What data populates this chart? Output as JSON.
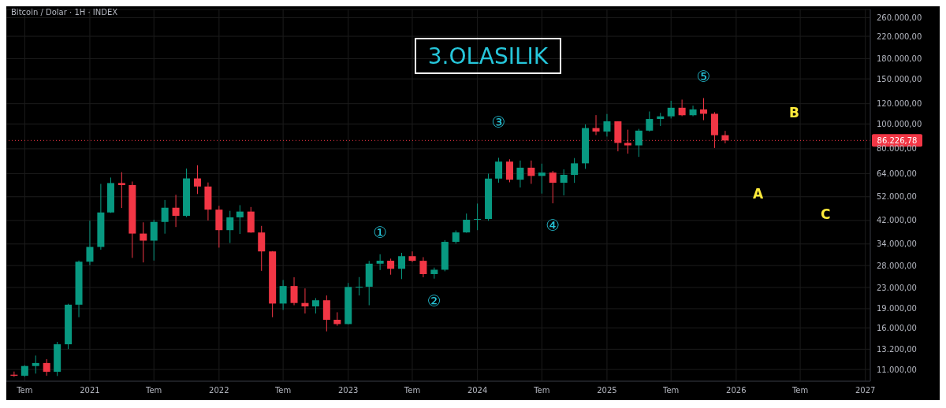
{
  "chart_data": {
    "type": "candlestick",
    "title": "3.OLASILIK",
    "subtitle": "Bitcoin / Dolar · 1H · INDEX",
    "x": [
      "2020-06",
      "2020-07",
      "2020-08",
      "2020-09",
      "2020-10",
      "2020-11",
      "2020-12",
      "2021-01",
      "2021-02",
      "2021-03",
      "2021-04",
      "2021-05",
      "2021-06",
      "2021-07",
      "2021-08",
      "2021-09",
      "2021-10",
      "2021-11",
      "2021-12",
      "2022-01",
      "2022-02",
      "2022-03",
      "2022-04",
      "2022-05",
      "2022-06",
      "2022-07",
      "2022-08",
      "2022-09",
      "2022-10",
      "2022-11",
      "2022-12",
      "2023-01",
      "2023-02",
      "2023-03",
      "2023-04",
      "2023-05",
      "2023-06",
      "2023-07",
      "2023-08",
      "2023-09",
      "2023-10",
      "2023-11",
      "2023-12",
      "2024-01",
      "2024-02",
      "2024-03",
      "2024-04",
      "2024-05",
      "2024-06",
      "2024-07",
      "2024-08",
      "2024-09",
      "2024-10",
      "2024-11",
      "2024-12",
      "2025-01",
      "2025-02",
      "2025-03",
      "2025-04",
      "2025-05",
      "2025-06",
      "2025-07",
      "2025-08",
      "2025-09",
      "2025-10",
      "2025-11",
      "2025-12"
    ],
    "ohlc": [
      [
        10500,
        10800,
        10300,
        10400
      ],
      [
        10400,
        11440,
        10300,
        11350
      ],
      [
        11350,
        12470,
        10600,
        11660
      ],
      [
        11660,
        12070,
        10400,
        10780
      ],
      [
        10780,
        14100,
        10380,
        13800
      ],
      [
        13800,
        19860,
        13220,
        19700
      ],
      [
        19700,
        29300,
        17600,
        28990
      ],
      [
        28990,
        41950,
        28100,
        33110
      ],
      [
        33110,
        58350,
        32300,
        45140
      ],
      [
        45140,
        61780,
        44950,
        58800
      ],
      [
        58800,
        64850,
        47000,
        57750
      ],
      [
        57750,
        59600,
        30000,
        37330
      ],
      [
        37330,
        41300,
        28800,
        35040
      ],
      [
        35040,
        42300,
        29300,
        41460
      ],
      [
        41460,
        50500,
        37300,
        47100
      ],
      [
        47100,
        52900,
        39600,
        43800
      ],
      [
        43800,
        67000,
        43300,
        61300
      ],
      [
        61300,
        69000,
        53300,
        57000
      ],
      [
        57000,
        59100,
        42000,
        46300
      ],
      [
        46300,
        47900,
        32900,
        38500
      ],
      [
        38500,
        45800,
        34300,
        43200
      ],
      [
        43200,
        48200,
        37200,
        45500
      ],
      [
        45500,
        47400,
        37600,
        37700
      ],
      [
        37700,
        40000,
        26700,
        31800
      ],
      [
        31800,
        31900,
        17600,
        19900
      ],
      [
        19900,
        24600,
        18800,
        23300
      ],
      [
        23300,
        25200,
        19600,
        20000
      ],
      [
        20000,
        22800,
        18200,
        19400
      ],
      [
        19400,
        20900,
        18200,
        20500
      ],
      [
        20500,
        21400,
        15500,
        17200
      ],
      [
        17200,
        18400,
        16300,
        16550
      ],
      [
        16550,
        23950,
        16500,
        23100
      ],
      [
        23100,
        25250,
        21400,
        23150
      ],
      [
        23150,
        29200,
        19600,
        28480
      ],
      [
        28480,
        31000,
        26900,
        29250
      ],
      [
        29250,
        29800,
        25800,
        27200
      ],
      [
        27200,
        31400,
        24800,
        30470
      ],
      [
        30470,
        31800,
        28900,
        29230
      ],
      [
        29230,
        30200,
        25200,
        25940
      ],
      [
        25940,
        27500,
        24900,
        26970
      ],
      [
        26970,
        35200,
        26600,
        34650
      ],
      [
        34650,
        38400,
        34100,
        37720
      ],
      [
        37720,
        44700,
        37600,
        42280
      ],
      [
        42280,
        48900,
        38500,
        42580
      ],
      [
        42580,
        64000,
        41900,
        61200
      ],
      [
        61200,
        73800,
        59000,
        71300
      ],
      [
        71300,
        72800,
        59200,
        60600
      ],
      [
        60600,
        72000,
        56500,
        67500
      ],
      [
        67500,
        72000,
        58400,
        62700
      ],
      [
        62700,
        70000,
        53500,
        64600
      ],
      [
        64600,
        65600,
        49000,
        58970
      ],
      [
        58970,
        66500,
        52600,
        63300
      ],
      [
        63300,
        73600,
        58900,
        70200
      ],
      [
        70200,
        99600,
        66800,
        96400
      ],
      [
        96400,
        108300,
        90500,
        93400
      ],
      [
        93400,
        109400,
        89300,
        102400
      ],
      [
        102400,
        102500,
        78200,
        84350
      ],
      [
        84350,
        95000,
        76600,
        82500
      ],
      [
        82500,
        95700,
        74400,
        94200
      ],
      [
        94200,
        111900,
        93400,
        104600
      ],
      [
        104600,
        110500,
        98200,
        107100
      ],
      [
        107100,
        123200,
        105100,
        115700
      ],
      [
        115700,
        124500,
        107300,
        108200
      ],
      [
        108200,
        117900,
        107200,
        114000
      ],
      [
        114000,
        126200,
        103500,
        109600
      ],
      [
        109600,
        111200,
        80600,
        90400
      ],
      [
        90400,
        94000,
        84000,
        86227
      ]
    ],
    "colors": [
      "#f23645",
      "#089981",
      "#089981",
      "#f23645",
      "#089981",
      "#089981",
      "#089981",
      "#089981",
      "#089981",
      "#089981",
      "#f23645",
      "#f23645",
      "#f23645",
      "#089981",
      "#089981",
      "#f23645",
      "#089981",
      "#f23645",
      "#f23645",
      "#f23645",
      "#089981",
      "#089981",
      "#f23645",
      "#f23645",
      "#f23645",
      "#089981",
      "#f23645",
      "#f23645",
      "#089981",
      "#f23645",
      "#f23645",
      "#089981",
      "#089981",
      "#089981",
      "#089981",
      "#f23645",
      "#089981",
      "#f23645",
      "#f23645",
      "#089981",
      "#089981",
      "#089981",
      "#089981",
      "#089981",
      "#089981",
      "#089981",
      "#f23645",
      "#089981",
      "#f23645",
      "#089981",
      "#f23645",
      "#089981",
      "#089981",
      "#089981",
      "#f23645",
      "#089981",
      "#f23645",
      "#f23645",
      "#089981",
      "#089981",
      "#089981",
      "#089981",
      "#f23645",
      "#089981",
      "#f23645",
      "#f23645",
      "#f23645"
    ],
    "xlim": [
      "2020-05-10",
      "2027-01-15"
    ],
    "xticks": [
      {
        "value": "2020-07",
        "label": "Tem"
      },
      {
        "value": "2021",
        "label": "2021"
      },
      {
        "value": "2021-07",
        "label": "Tem"
      },
      {
        "value": "2022",
        "label": "2022"
      },
      {
        "value": "2022-07",
        "label": "Tem"
      },
      {
        "value": "2023",
        "label": "2023"
      },
      {
        "value": "2023-07",
        "label": "Tem"
      },
      {
        "value": "2024",
        "label": "2024"
      },
      {
        "value": "2024-07",
        "label": "Tem"
      },
      {
        "value": "2025",
        "label": "2025"
      },
      {
        "value": "2025-07",
        "label": "Tem"
      },
      {
        "value": "2026",
        "label": "2026"
      },
      {
        "value": "2026-07",
        "label": "Tem"
      },
      {
        "value": "2027",
        "label": "2027"
      }
    ],
    "log": true,
    "ylim": [
      9900,
      280000
    ],
    "yticks": [
      {
        "value": 11000,
        "label": "11.000,00"
      },
      {
        "value": 13200,
        "label": "13.200,00"
      },
      {
        "value": 16000,
        "label": "16.000,00"
      },
      {
        "value": 19000,
        "label": "19.000,00"
      },
      {
        "value": 23000,
        "label": "23.000,00"
      },
      {
        "value": 28000,
        "label": "28.000,00"
      },
      {
        "value": 34000,
        "label": "34.000,00"
      },
      {
        "value": 42000,
        "label": "42.000,00"
      },
      {
        "value": 52000,
        "label": "52.000,00"
      },
      {
        "value": 64000,
        "label": "64.000,00"
      },
      {
        "value": 80000,
        "label": "80.000,00"
      },
      {
        "value": 100000,
        "label": "100.000,00"
      },
      {
        "value": 120000,
        "label": "120.000,00"
      },
      {
        "value": 150000,
        "label": "150.000,00"
      },
      {
        "value": 180000,
        "label": "180.000,00"
      },
      {
        "value": 220000,
        "label": "220.000,00"
      },
      {
        "value": 260000,
        "label": "260.000,00"
      }
    ],
    "grid": true,
    "ref_lines": [
      {
        "axis": "y",
        "value": 86226.78,
        "label": "86.226,78",
        "color": "#f23645",
        "line_style": "dotted"
      }
    ],
    "annotations": [
      {
        "text": "①",
        "x": "2023-04",
        "y": 31000
      },
      {
        "text": "②",
        "x": "2023-09",
        "y": 24900
      },
      {
        "text": "③",
        "x": "2024-03",
        "y": 73800
      },
      {
        "text": "④",
        "x": "2024-08",
        "y": 49000
      },
      {
        "text": "⑤",
        "x": "2025-10",
        "y": 126200
      },
      "A",
      "B",
      "C"
    ]
  }
}
